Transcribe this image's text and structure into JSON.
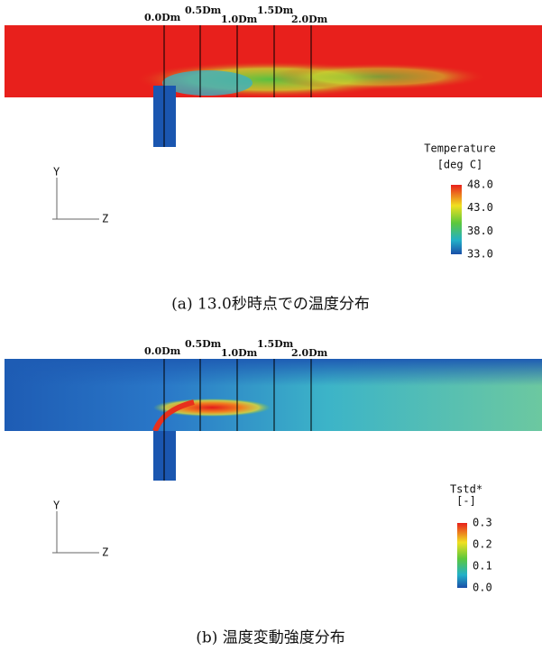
{
  "panels": [
    {
      "stations": [
        "0.0Dm",
        "0.5Dm",
        "1.0Dm",
        "1.5Dm",
        "2.0Dm"
      ],
      "axes": {
        "y": "Y",
        "z": "Z"
      },
      "legend": {
        "title": "Temperature",
        "unit": "[deg C]",
        "ticks": [
          "48.0",
          "43.0",
          "38.0",
          "33.0"
        ]
      },
      "caption": "(a) 13.0秒時点での温度分布"
    },
    {
      "stations": [
        "0.0Dm",
        "0.5Dm",
        "1.0Dm",
        "1.5Dm",
        "2.0Dm"
      ],
      "axes": {
        "y": "Y",
        "z": "Z"
      },
      "legend": {
        "title": "Tstd*",
        "unit": "[-]",
        "ticks": [
          "0.3",
          "0.2",
          "0.1",
          "0.0"
        ]
      },
      "caption": "(b) 温度変動強度分布"
    }
  ]
}
